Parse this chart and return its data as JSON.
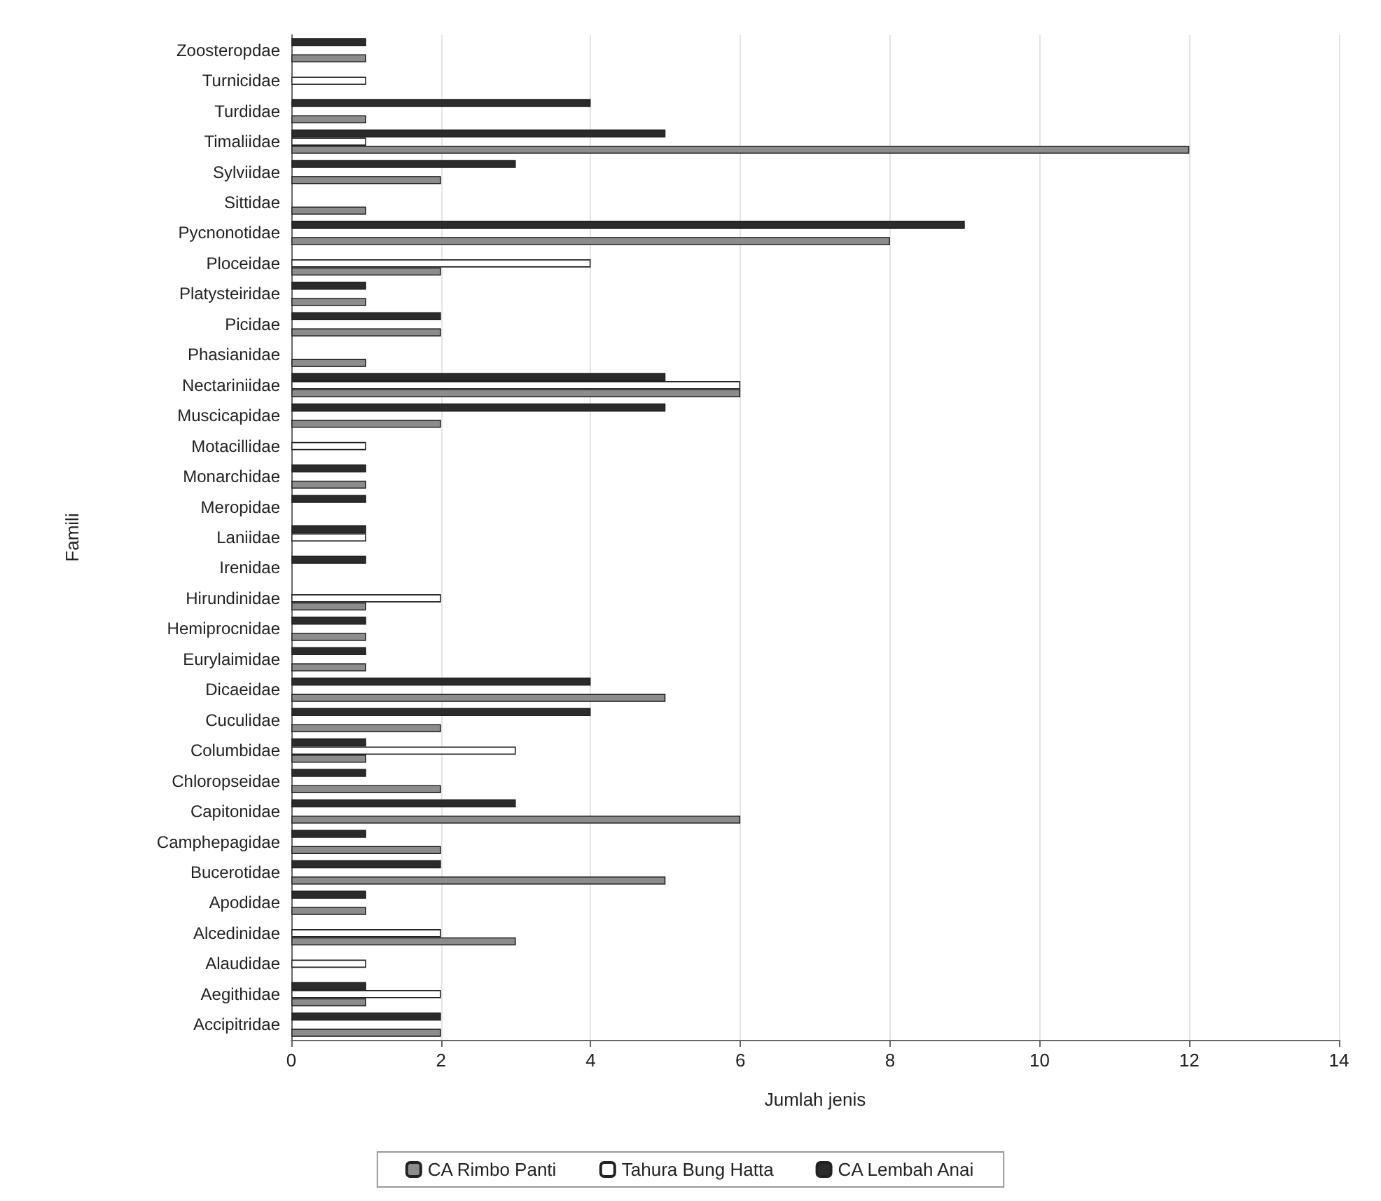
{
  "chart_data": {
    "type": "bar",
    "orientation": "horizontal",
    "xlabel": "Jumlah jenis",
    "ylabel": "Famili",
    "categories": [
      "Zoosteropdae",
      "Turnicidae",
      "Turdidae",
      "Timaliidae",
      "Sylviidae",
      "Sittidae",
      "Pycnonotidae",
      "Ploceidae",
      "Platysteiridae",
      "Picidae",
      "Phasianidae",
      "Nectariniidae",
      "Muscicapidae",
      "Motacillidae",
      "Monarchidae",
      "Meropidae",
      "Laniidae",
      "Irenidae",
      "Hirundinidae",
      "Hemiprocnidae",
      "Eurylaimidae",
      "Dicaeidae",
      "Cuculidae",
      "Columbidae",
      "Chloropseidae",
      "Capitonidae",
      "Camphepagidae",
      "Bucerotidae",
      "Apodidae",
      "Alcedinidae",
      "Alaudidae",
      "Aegithidae",
      "Accipitridae"
    ],
    "series": [
      {
        "name": "CA Rimbo Panti",
        "color": "#8c8c8c",
        "values": [
          1,
          null,
          1,
          12,
          2,
          1,
          8,
          2,
          1,
          2,
          1,
          6,
          2,
          null,
          1,
          null,
          null,
          null,
          1,
          1,
          1,
          5,
          2,
          1,
          2,
          6,
          2,
          5,
          1,
          3,
          null,
          1,
          2
        ]
      },
      {
        "name": "Tahura Bung Hatta",
        "color": "#ffffff",
        "values": [
          null,
          1,
          null,
          1,
          null,
          null,
          null,
          4,
          null,
          null,
          null,
          6,
          null,
          1,
          null,
          null,
          1,
          null,
          2,
          null,
          null,
          null,
          null,
          3,
          null,
          null,
          null,
          null,
          null,
          2,
          1,
          2,
          null
        ]
      },
      {
        "name": "CA Lembah Anai",
        "color": "#2b2b2b",
        "values": [
          1,
          null,
          4,
          5,
          3,
          null,
          9,
          null,
          1,
          2,
          null,
          5,
          5,
          null,
          1,
          1,
          1,
          1,
          null,
          1,
          1,
          4,
          4,
          1,
          1,
          3,
          1,
          2,
          1,
          null,
          null,
          1,
          2
        ]
      }
    ],
    "xlim": [
      0,
      14
    ],
    "xticks": [
      0,
      2,
      4,
      6,
      8,
      10,
      12,
      14
    ],
    "grid": "x",
    "legend": "bottom"
  }
}
